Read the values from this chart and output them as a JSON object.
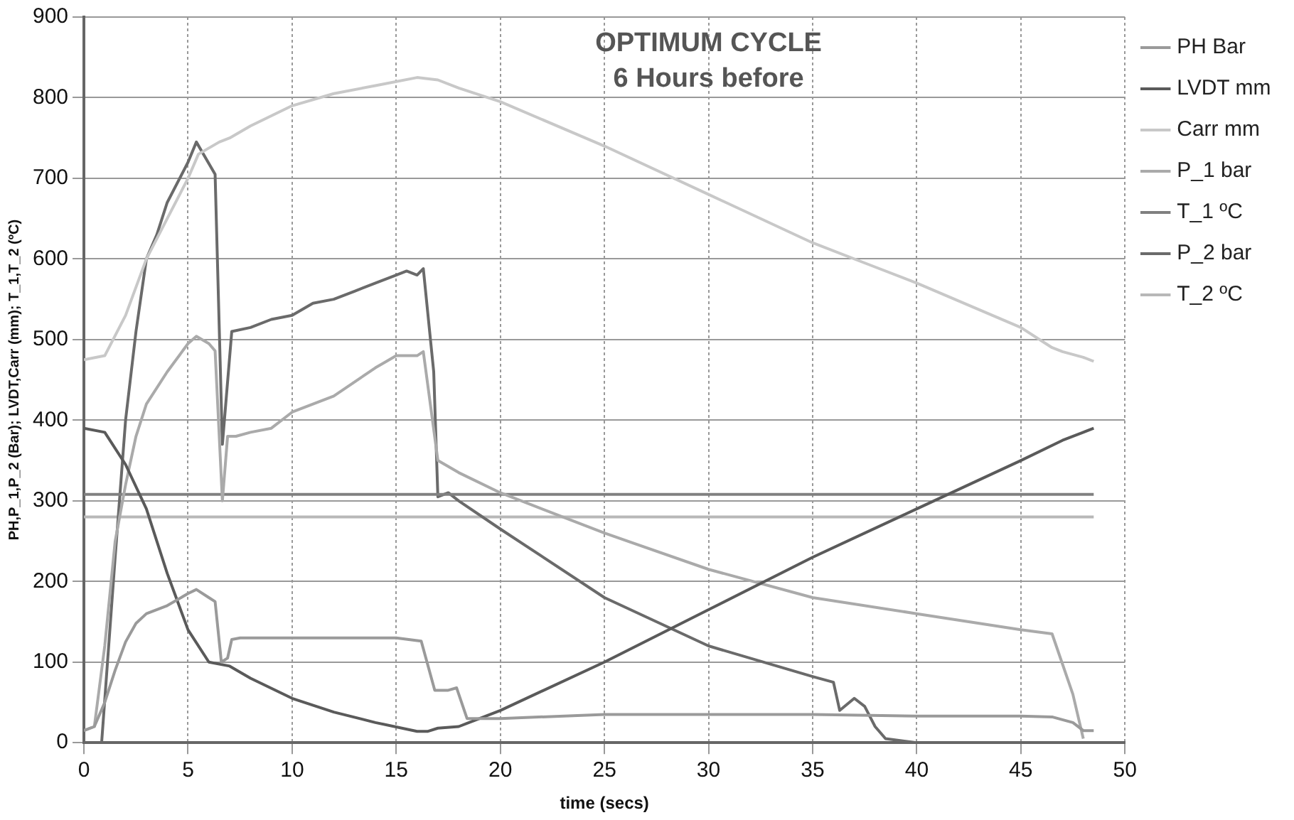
{
  "chart_data": {
    "type": "line",
    "xlabel": "time (secs)",
    "ylabel": "PH,P_1,P_2 (Bar); LVDT,Carr (mm); T_1,T_2 (ºC)",
    "annotations": [
      "OPTIMUM CYCLE",
      "6 Hours before"
    ],
    "xlim": [
      0,
      50
    ],
    "xticks": [
      0,
      5,
      10,
      15,
      20,
      25,
      30,
      35,
      40,
      45,
      50
    ],
    "ylim": [
      0,
      900
    ],
    "yticks": [
      0,
      100,
      200,
      300,
      400,
      500,
      600,
      700,
      800,
      900
    ],
    "grid": true,
    "legend": "right",
    "marker": "none",
    "line_style": "solid",
    "series": [
      {
        "name": "PH Bar",
        "color": "#9a9a9a",
        "x": [
          0,
          0.5,
          1,
          1.5,
          2,
          2.5,
          3,
          4,
          5,
          5.4,
          6,
          6.3,
          6.6,
          6.9,
          7.1,
          7.5,
          10,
          15,
          16.2,
          16.85,
          17.5,
          17.9,
          18.4,
          19,
          20,
          25,
          30,
          35,
          40,
          45,
          46.5,
          47.5,
          48,
          48.5
        ],
        "values": [
          15,
          20,
          50,
          90,
          125,
          148,
          160,
          170,
          185,
          190,
          180,
          175,
          100,
          105,
          128,
          130,
          130,
          130,
          126,
          65,
          65,
          68,
          30,
          30,
          30,
          35,
          35,
          35,
          33,
          33,
          32,
          25,
          15,
          15
        ]
      },
      {
        "name": "LVDT mm",
        "color": "#5a5a5a",
        "x": [
          0,
          1,
          2,
          3,
          4,
          5,
          6,
          7,
          8,
          10,
          12,
          14,
          16,
          16.5,
          17,
          18,
          20,
          25,
          28,
          30,
          35,
          40,
          45,
          47,
          48,
          48.5
        ],
        "values": [
          390,
          385,
          345,
          290,
          210,
          140,
          100,
          95,
          80,
          55,
          38,
          25,
          14,
          14,
          18,
          20,
          40,
          100,
          139,
          165,
          230,
          290,
          350,
          375,
          385,
          390
        ]
      },
      {
        "name": "Carr mm",
        "color": "#c8c8c8",
        "x": [
          0,
          1,
          2,
          3,
          4,
          5,
          5.5,
          6.5,
          7,
          8,
          10,
          12,
          14,
          16,
          17,
          18,
          20,
          25,
          30,
          35,
          38,
          40,
          45,
          46.5,
          47,
          48,
          48.5
        ],
        "values": [
          475,
          480,
          530,
          600,
          650,
          700,
          730,
          745,
          750,
          765,
          790,
          805,
          815,
          825,
          822,
          812,
          795,
          740,
          680,
          620,
          590,
          570,
          515,
          490,
          485,
          478,
          473
        ]
      },
      {
        "name": "P_1 bar",
        "color": "#aaaaaa",
        "x": [
          0,
          0.5,
          1,
          1.5,
          2,
          2.5,
          3,
          4,
          5,
          5.4,
          6,
          6.3,
          6.65,
          6.9,
          7.3,
          8,
          9,
          10,
          12,
          14,
          15,
          16,
          16.3,
          17,
          18,
          20,
          25,
          30,
          35,
          40,
          45,
          46.5,
          47.5,
          48
        ],
        "values": [
          15,
          20,
          120,
          250,
          320,
          380,
          420,
          460,
          495,
          504,
          495,
          486,
          300,
          380,
          380,
          385,
          390,
          410,
          430,
          465,
          480,
          480,
          485,
          350,
          335,
          310,
          260,
          215,
          180,
          160,
          140,
          135,
          60,
          5
        ]
      },
      {
        "name": "T_1 ºC",
        "color": "#808080",
        "x": [
          0,
          48.5
        ],
        "values": [
          308,
          308
        ]
      },
      {
        "name": "P_2 bar",
        "color": "#6a6a6a",
        "x": [
          0.85,
          1.5,
          2,
          2.5,
          3,
          3.5,
          4,
          5,
          5.4,
          6.3,
          6.65,
          7.1,
          8,
          9,
          10,
          11,
          12,
          13,
          14,
          15,
          15.5,
          16,
          16.3,
          16.8,
          17,
          17.5,
          18,
          20,
          25,
          30,
          35,
          36,
          36.3,
          37,
          37.5,
          38,
          38.5,
          40
        ],
        "values": [
          0,
          230,
          400,
          510,
          600,
          630,
          670,
          720,
          745,
          705,
          370,
          510,
          515,
          525,
          530,
          545,
          550,
          560,
          570,
          580,
          585,
          580,
          588,
          460,
          305,
          310,
          300,
          265,
          180,
          120,
          82,
          75,
          40,
          55,
          45,
          20,
          5,
          0
        ]
      },
      {
        "name": "T_2 ºC",
        "color": "#b8b8b8",
        "x": [
          0,
          48.5
        ],
        "values": [
          280,
          280
        ]
      }
    ]
  }
}
